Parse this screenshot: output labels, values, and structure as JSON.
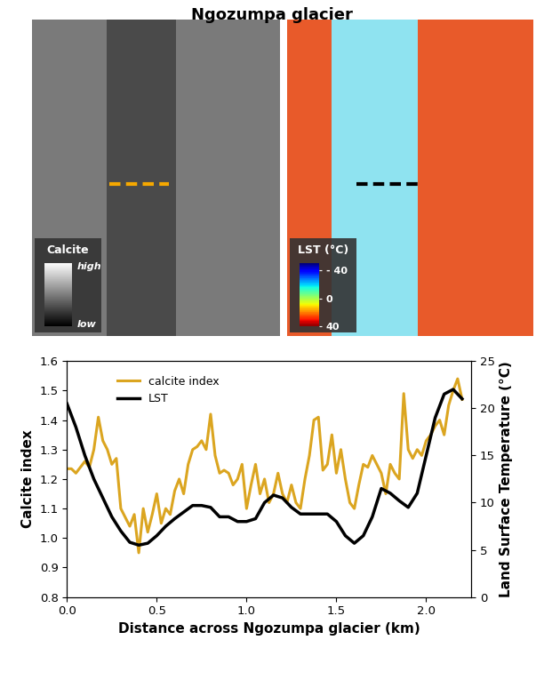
{
  "title": "Ngozumpa glacier",
  "image_panels": [
    {
      "legend_title": "Calcite",
      "legend_high": "high",
      "legend_low": "low"
    },
    {
      "legend_title": "LST (°C)",
      "colorbar_range": [
        -50,
        40
      ],
      "colorbar_ticks": [
        {
          "value": -40,
          "label": "- 40"
        },
        0,
        40
      ]
    }
  ],
  "chart_data": {
    "type": "line",
    "xlabel": "Distance across Ngozumpa glacier (km)",
    "ylabel": "Calcite index",
    "y2label": "Land Surface Temperature (°C)",
    "xlim": [
      0,
      2.25
    ],
    "xticks": [
      0.0,
      0.5,
      1.0,
      1.5,
      2.0
    ],
    "ylim": [
      0.8,
      1.6
    ],
    "yticks": [
      0.8,
      0.9,
      1.0,
      1.1,
      1.2,
      1.3,
      1.4,
      1.5,
      1.6
    ],
    "y2lim": [
      0,
      25
    ],
    "y2ticks": [
      0,
      5,
      10,
      15,
      20,
      25
    ],
    "legend": "upper left",
    "series": [
      {
        "name": "calcite index",
        "color": "#DBA520",
        "x": [
          0,
          0.025,
          0.05,
          0.075,
          0.1,
          0.125,
          0.15,
          0.175,
          0.2,
          0.225,
          0.25,
          0.275,
          0.3,
          0.325,
          0.35,
          0.375,
          0.4,
          0.425,
          0.45,
          0.475,
          0.5,
          0.525,
          0.55,
          0.575,
          0.6,
          0.625,
          0.65,
          0.675,
          0.7,
          0.725,
          0.75,
          0.775,
          0.8,
          0.825,
          0.85,
          0.875,
          0.9,
          0.925,
          0.95,
          0.975,
          1.0,
          1.025,
          1.05,
          1.075,
          1.1,
          1.125,
          1.15,
          1.175,
          1.2,
          1.225,
          1.25,
          1.275,
          1.3,
          1.325,
          1.35,
          1.375,
          1.4,
          1.425,
          1.45,
          1.475,
          1.5,
          1.525,
          1.55,
          1.575,
          1.6,
          1.625,
          1.65,
          1.675,
          1.7,
          1.725,
          1.75,
          1.775,
          1.8,
          1.825,
          1.85,
          1.875,
          1.9,
          1.925,
          1.95,
          1.975,
          2.0,
          2.025,
          2.05,
          2.075,
          2.1,
          2.125,
          2.15,
          2.175,
          2.2
        ],
        "values": [
          1.235,
          1.235,
          1.22,
          1.24,
          1.26,
          1.24,
          1.3,
          1.41,
          1.33,
          1.3,
          1.25,
          1.27,
          1.1,
          1.07,
          1.04,
          1.08,
          0.95,
          1.1,
          1.02,
          1.08,
          1.15,
          1.05,
          1.1,
          1.08,
          1.16,
          1.2,
          1.15,
          1.25,
          1.3,
          1.31,
          1.33,
          1.3,
          1.42,
          1.28,
          1.22,
          1.23,
          1.22,
          1.18,
          1.2,
          1.25,
          1.1,
          1.18,
          1.25,
          1.15,
          1.2,
          1.12,
          1.15,
          1.22,
          1.15,
          1.12,
          1.18,
          1.12,
          1.1,
          1.2,
          1.28,
          1.4,
          1.41,
          1.23,
          1.25,
          1.35,
          1.22,
          1.3,
          1.2,
          1.12,
          1.1,
          1.18,
          1.25,
          1.24,
          1.28,
          1.25,
          1.22,
          1.15,
          1.25,
          1.22,
          1.2,
          1.49,
          1.3,
          1.27,
          1.3,
          1.28,
          1.33,
          1.35,
          1.38,
          1.4,
          1.35,
          1.45,
          1.5,
          1.54,
          1.47
        ]
      },
      {
        "name": "LST",
        "color": "#000000",
        "axis": "y2",
        "x": [
          0,
          0.05,
          0.1,
          0.15,
          0.2,
          0.25,
          0.3,
          0.35,
          0.4,
          0.45,
          0.5,
          0.55,
          0.6,
          0.65,
          0.7,
          0.75,
          0.8,
          0.85,
          0.9,
          0.95,
          1.0,
          1.05,
          1.1,
          1.15,
          1.2,
          1.25,
          1.3,
          1.35,
          1.4,
          1.45,
          1.5,
          1.55,
          1.6,
          1.65,
          1.7,
          1.75,
          1.8,
          1.85,
          1.9,
          1.95,
          2.0,
          2.05,
          2.1,
          2.15,
          2.2
        ],
        "values": [
          20.5,
          18,
          15,
          12.5,
          10.5,
          8.5,
          7,
          5.8,
          5.5,
          5.7,
          6.5,
          7.5,
          8.3,
          9,
          9.7,
          9.7,
          9.5,
          8.5,
          8.5,
          8,
          8,
          8.3,
          10,
          10.8,
          10.5,
          9.5,
          8.8,
          8.8,
          8.8,
          8.8,
          8,
          6.5,
          5.7,
          6.5,
          8.5,
          11.5,
          11,
          10.2,
          9.5,
          11,
          15,
          19,
          21.5,
          22,
          21
        ]
      }
    ]
  }
}
